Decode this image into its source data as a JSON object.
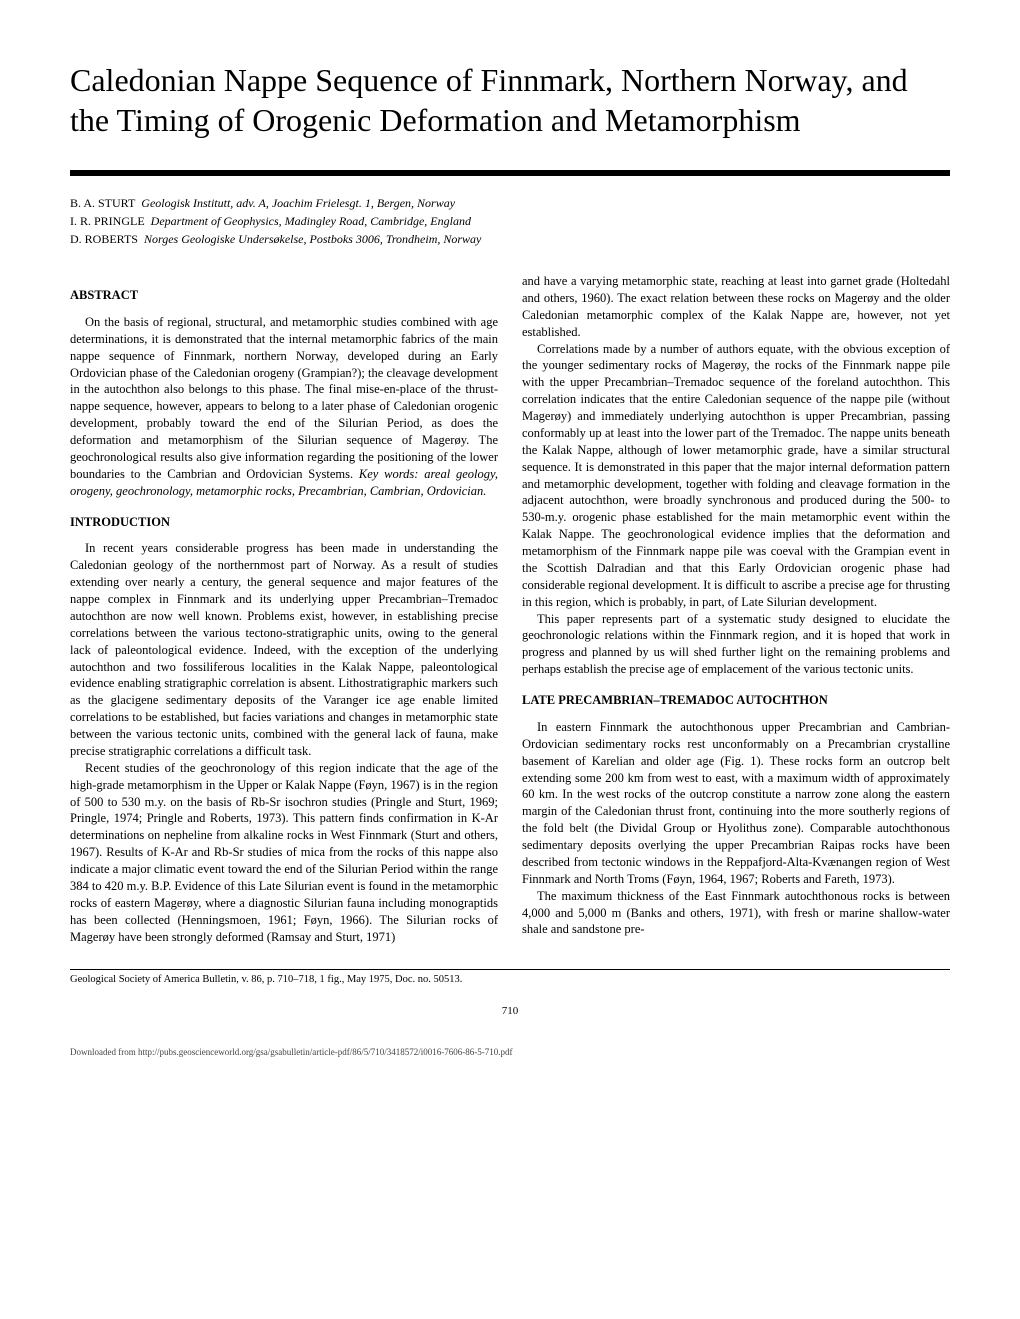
{
  "title": "Caledonian Nappe Sequence of Finnmark, Northern Norway, and the Timing of Orogenic Deformation and Metamorphism",
  "authors": [
    {
      "name": "B. A. STURT",
      "affiliation": "Geologisk Institutt, adv. A, Joachim Frielesgt. 1, Bergen, Norway"
    },
    {
      "name": "I. R. PRINGLE",
      "affiliation": "Department of Geophysics, Madingley Road, Cambridge, England"
    },
    {
      "name": "D. ROBERTS",
      "affiliation": "Norges Geologiske Undersøkelse, Postboks 3006, Trondheim, Norway"
    }
  ],
  "abstract_heading": "ABSTRACT",
  "abstract_body": "On the basis of regional, structural, and metamorphic studies combined with age determinations, it is demonstrated that the internal metamorphic fabrics of the main nappe sequence of Finnmark, northern Norway, developed during an Early Ordovician phase of the Caledonian orogeny (Grampian?); the cleavage development in the autochthon also belongs to this phase. The final mise-en-place of the thrust-nappe sequence, however, appears to belong to a later phase of Caledonian orogenic development, probably toward the end of the Silurian Period, as does the deformation and metamorphism of the Silurian sequence of Magerøy. The geochronological results also give information regarding the positioning of the lower boundaries to the Cambrian and Ordovician Systems. ",
  "abstract_keywords": "Key words: areal geology, orogeny, geochronology, metamorphic rocks, Precambrian, Cambrian, Ordovician.",
  "intro_heading": "INTRODUCTION",
  "intro_p1": "In recent years considerable progress has been made in understanding the Caledonian geology of the northernmost part of Norway. As a result of studies extending over nearly a century, the general sequence and major features of the nappe complex in Finnmark and its underlying upper Precambrian–Tremadoc autochthon are now well known. Problems exist, however, in establishing precise correlations between the various tectono-stratigraphic units, owing to the general lack of paleontological evidence. Indeed, with the exception of the underlying autochthon and two fossiliferous localities in the Kalak Nappe, paleontological evidence enabling stratigraphic correlation is absent. Lithostratigraphic markers such as the glacigene sedimentary deposits of the Varanger ice age enable limited correlations to be established, but facies variations and changes in metamorphic state between the various tectonic units, combined with the general lack of fauna, make precise stratigraphic correlations a difficult task.",
  "intro_p2": "Recent studies of the geochronology of this region indicate that the age of the high-grade metamorphism in the Upper or Kalak Nappe (Føyn, 1967) is in the region of 500 to 530 m.y. on the basis of Rb-Sr isochron studies (Pringle and Sturt, 1969; Pringle, 1974; Pringle and Roberts, 1973). This pattern finds confirmation in K-Ar determinations on nepheline from alkaline rocks in West Finnmark (Sturt and others, 1967). Results of K-Ar and Rb-Sr studies of mica from the rocks of this nappe also indicate a major climatic event toward the end of the Silurian Period within the range 384 to 420 m.y. B.P. Evidence of this Late Silurian event is found in the metamorphic rocks of eastern Magerøy, where a diagnostic Silurian fauna including monograptids has been collected (Henningsmoen, 1961; Føyn, 1966). The Silurian rocks of Magerøy have been strongly deformed (Ramsay and Sturt, 1971)",
  "col2_p1": "and have a varying metamorphic state, reaching at least into garnet grade (Holtedahl and others, 1960). The exact relation between these rocks on Magerøy and the older Caledonian metamorphic complex of the Kalak Nappe are, however, not yet established.",
  "col2_p2": "Correlations made by a number of authors equate, with the obvious exception of the younger sedimentary rocks of Magerøy, the rocks of the Finnmark nappe pile with the upper Precambrian–Tremadoc sequence of the foreland autochthon. This correlation indicates that the entire Caledonian sequence of the nappe pile (without Magerøy) and immediately underlying autochthon is upper Precambrian, passing conformably up at least into the lower part of the Tremadoc. The nappe units beneath the Kalak Nappe, although of lower metamorphic grade, have a similar structural sequence. It is demonstrated in this paper that the major internal deformation pattern and metamorphic development, together with folding and cleavage formation in the adjacent autochthon, were broadly synchronous and produced during the 500- to 530-m.y. orogenic phase established for the main metamorphic event within the Kalak Nappe. The geochronological evidence implies that the deformation and metamorphism of the Finnmark nappe pile was coeval with the Grampian event in the Scottish Dalradian and that this Early Ordovician orogenic phase had considerable regional development. It is difficult to ascribe a precise age for thrusting in this region, which is probably, in part, of Late Silurian development.",
  "col2_p3": "This paper represents part of a systematic study designed to elucidate the geochronologic relations within the Finnmark region, and it is hoped that work in progress and planned by us will shed further light on the remaining problems and perhaps establish the precise age of emplacement of the various tectonic units.",
  "late_heading": "LATE PRECAMBRIAN–TREMADOC AUTOCHTHON",
  "late_p1": "In eastern Finnmark the autochthonous upper Precambrian and Cambrian-Ordovician sedimentary rocks rest unconformably on a Precambrian crystalline basement of Karelian and older age (Fig. 1). These rocks form an outcrop belt extending some 200 km from west to east, with a maximum width of approximately 60 km. In the west rocks of the outcrop constitute a narrow zone along the eastern margin of the Caledonian thrust front, continuing into the more southerly regions of the fold belt (the Dividal Group or Hyolithus zone). Comparable autochthonous sedimentary deposits overlying the upper Precambrian Raipas rocks have been described from tectonic windows in the Reppafjord-Alta-Kvænangen region of West Finnmark and North Troms (Føyn, 1964, 1967; Roberts and Fareth, 1973).",
  "late_p2": "The maximum thickness of the East Finnmark autochthonous rocks is between 4,000 and 5,000 m (Banks and others, 1971), with fresh or marine shallow-water shale and sandstone pre-",
  "citation": "Geological Society of America Bulletin, v. 86, p. 710–718, 1 fig., May 1975, Doc. no. 50513.",
  "page_number": "710",
  "footer": "Downloaded from http://pubs.geoscienceworld.org/gsa/gsabulletin/article-pdf/86/5/710/3418572/i0016-7606-86-5-710.pdf"
}
